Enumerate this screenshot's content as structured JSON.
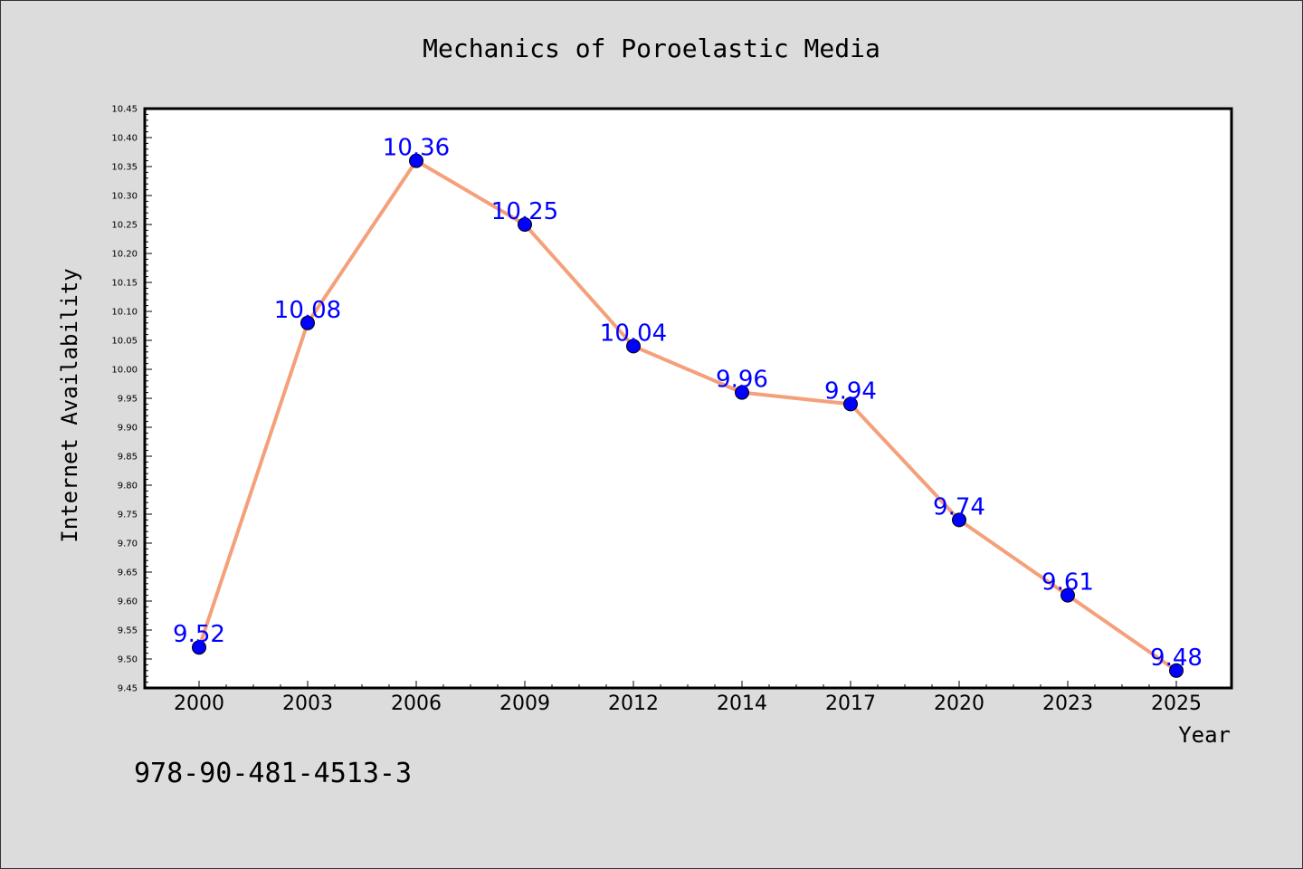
{
  "chart_data": {
    "type": "line",
    "title": "Mechanics of Poroelastic Media",
    "xlabel": "Year",
    "ylabel": "Internet Availability",
    "categories": [
      "2000",
      "2003",
      "2006",
      "2009",
      "2012",
      "2014",
      "2017",
      "2020",
      "2023",
      "2025"
    ],
    "values": [
      9.52,
      10.08,
      10.36,
      10.25,
      10.04,
      9.96,
      9.94,
      9.74,
      9.61,
      9.48
    ],
    "data_labels": [
      "9.52",
      "10.08",
      "10.36",
      "10.25",
      "10.04",
      "9.96",
      "9.94",
      "9.74",
      "9.61",
      "9.48"
    ],
    "ylim": [
      9.45,
      10.45
    ],
    "yticks": [
      "9.45",
      "9.50",
      "9.55",
      "9.60",
      "9.65",
      "9.70",
      "9.75",
      "9.80",
      "9.85",
      "9.90",
      "9.95",
      "10.00",
      "10.05",
      "10.10",
      "10.15",
      "10.20",
      "10.25",
      "10.30",
      "10.35",
      "10.40",
      "10.45"
    ],
    "grid": false,
    "line_color": "#f4a07a",
    "marker_color": "#0000ff",
    "label_color": "#0000ff"
  },
  "annotation": "978-90-481-4513-3"
}
